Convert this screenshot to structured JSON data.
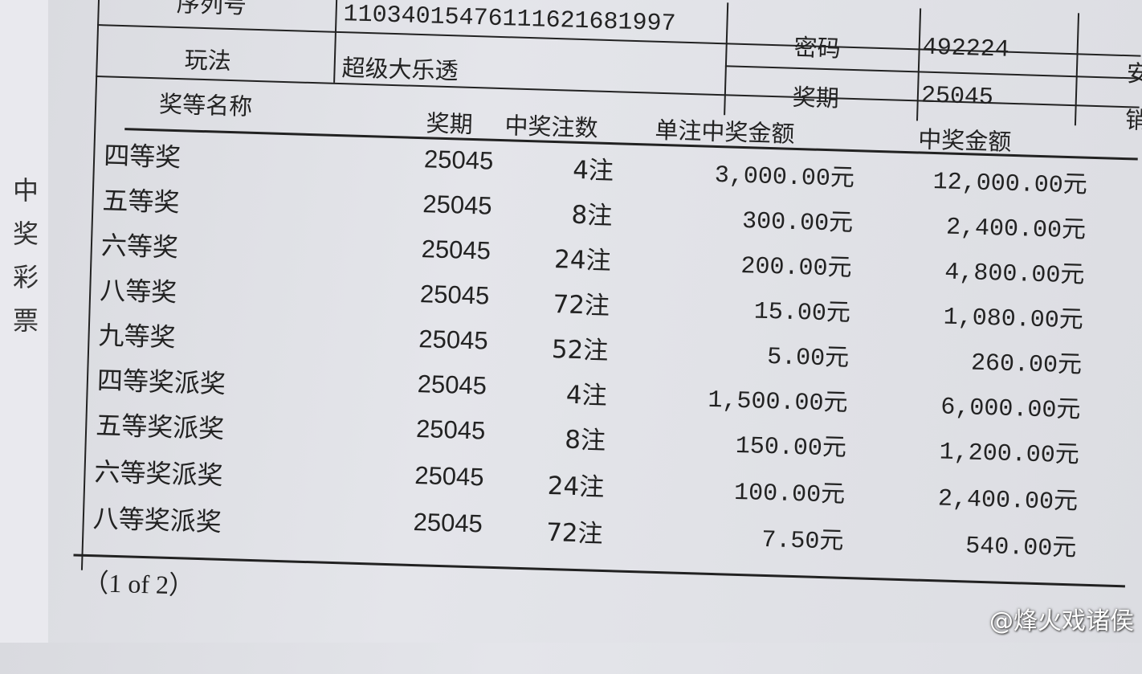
{
  "side_label": "中奖彩票",
  "header": {
    "serial_label": "序列号",
    "serial_value": "11034015476111621681997",
    "play_label": "玩法",
    "play_value": "超级大乐透",
    "password_label": "密码",
    "password_value": "492224",
    "period_label": "奖期",
    "period_value": "25045",
    "right_cut_1": "安",
    "right_cut_2": "销"
  },
  "table": {
    "columns": [
      "奖等名称",
      "奖期",
      "中奖注数",
      "单注中奖金额",
      "中奖金额"
    ],
    "rows": [
      {
        "name": "四等奖",
        "period": "25045",
        "count": "4注",
        "unit": "3,000.00元",
        "total": "12,000.00元"
      },
      {
        "name": "五等奖",
        "period": "25045",
        "count": "8注",
        "unit": "300.00元",
        "total": "2,400.00元"
      },
      {
        "name": "六等奖",
        "period": "25045",
        "count": "24注",
        "unit": "200.00元",
        "total": "4,800.00元"
      },
      {
        "name": "八等奖",
        "period": "25045",
        "count": "72注",
        "unit": "15.00元",
        "total": "1,080.00元"
      },
      {
        "name": "九等奖",
        "period": "25045",
        "count": "52注",
        "unit": "5.00元",
        "total": "260.00元"
      },
      {
        "name": "四等奖派奖",
        "period": "25045",
        "count": "4注",
        "unit": "1,500.00元",
        "total": "6,000.00元"
      },
      {
        "name": "五等奖派奖",
        "period": "25045",
        "count": "8注",
        "unit": "150.00元",
        "total": "1,200.00元"
      },
      {
        "name": "六等奖派奖",
        "period": "25045",
        "count": "24注",
        "unit": "100.00元",
        "total": "2,400.00元"
      },
      {
        "name": "八等奖派奖",
        "period": "25045",
        "count": "72注",
        "unit": "7.50元",
        "total": "540.00元"
      }
    ]
  },
  "page_indicator": "（1 of 2）",
  "watermark": "@烽火戏诸侯"
}
